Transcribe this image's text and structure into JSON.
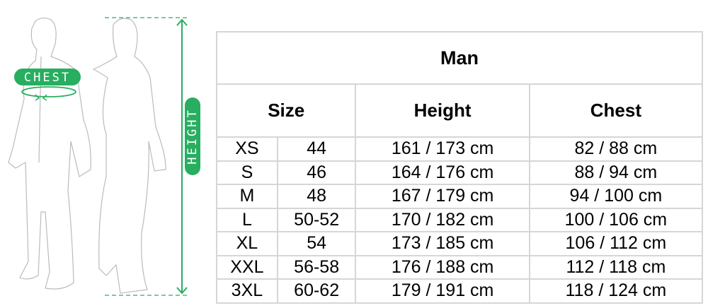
{
  "figure": {
    "chest_label": "CHEST",
    "height_label": "HEIGHT",
    "accent_color": "#27ae60"
  },
  "table": {
    "title": "Man",
    "headers": [
      "Size",
      "Height",
      "Chest"
    ],
    "rows": [
      {
        "size": "XS",
        "eu": "44",
        "height": "161 / 173 cm",
        "chest": "82 / 88 cm"
      },
      {
        "size": "S",
        "eu": "46",
        "height": "164 / 176 cm",
        "chest": "88 / 94 cm"
      },
      {
        "size": "M",
        "eu": "48",
        "height": "167 / 179 cm",
        "chest": "94 / 100 cm"
      },
      {
        "size": "L",
        "eu": "50-52",
        "height": "170 / 182 cm",
        "chest": "100 / 106 cm"
      },
      {
        "size": "XL",
        "eu": "54",
        "height": "173 / 185 cm",
        "chest": "106 / 112 cm"
      },
      {
        "size": "XXL",
        "eu": "56-58",
        "height": "176 / 188 cm",
        "chest": "112 / 118 cm"
      },
      {
        "size": "3XL",
        "eu": "60-62",
        "height": "179 / 191 cm",
        "chest": "118 / 124 cm"
      }
    ]
  }
}
